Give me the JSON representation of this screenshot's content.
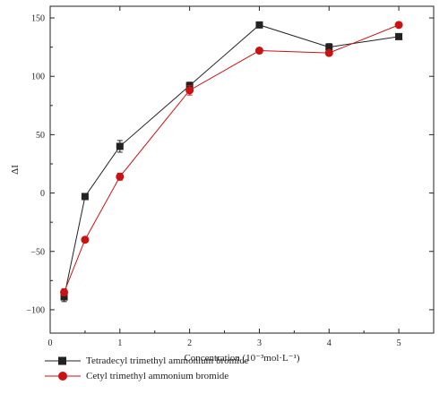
{
  "chart_data": {
    "type": "line",
    "xlabel": "Concentration (10⁻³mol·L⁻¹)",
    "ylabel": "ΔI",
    "xlim": [
      0,
      5.5
    ],
    "ylim": [
      -120,
      160
    ],
    "xticks": [
      0,
      1,
      2,
      3,
      4,
      5
    ],
    "yticks": [
      -100,
      -50,
      0,
      50,
      100,
      150
    ],
    "grid": false,
    "legend_position": "bottom-left",
    "series": [
      {
        "name": "Tetradecyl trimethyl ammonium bromide",
        "color": "#222222",
        "marker": "square",
        "x": [
          0.2,
          0.5,
          1,
          2,
          3,
          4,
          5
        ],
        "y": [
          -89,
          -3,
          40,
          92,
          144,
          125,
          134
        ],
        "err": [
          4,
          2,
          5,
          3,
          2,
          3,
          2
        ]
      },
      {
        "name": "Cetyl trimethyl ammonium bromide",
        "color": "#cc1111",
        "marker": "circle",
        "x": [
          0.2,
          0.5,
          1,
          2,
          3,
          4,
          5
        ],
        "y": [
          -85,
          -40,
          14,
          88,
          122,
          120,
          144
        ],
        "err": [
          3,
          2,
          3,
          4,
          2,
          2,
          2
        ]
      }
    ]
  }
}
